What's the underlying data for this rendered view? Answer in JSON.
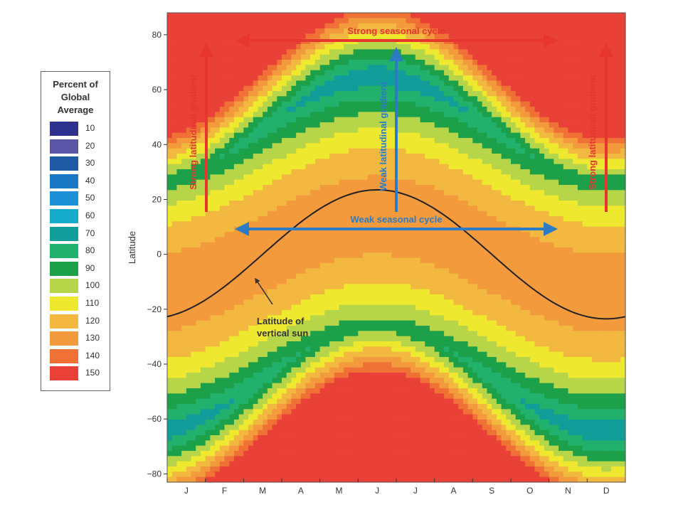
{
  "chart_data": {
    "type": "heatmap",
    "title": "",
    "xlabel": "",
    "ylabel": "Latitude",
    "x_ticks": [
      "J",
      "F",
      "M",
      "A",
      "M",
      "J",
      "J",
      "A",
      "S",
      "O",
      "N",
      "D"
    ],
    "y_ticks": [
      80,
      60,
      40,
      20,
      0,
      -20,
      -40,
      -60,
      -80
    ],
    "ylim": [
      -83,
      88
    ],
    "legend": {
      "title": "Percent of\nGlobal\nAverage",
      "placement": "left",
      "levels": [
        {
          "value": 10,
          "color": "#2f3191"
        },
        {
          "value": 20,
          "color": "#5b55a5"
        },
        {
          "value": 30,
          "color": "#1f5aa6"
        },
        {
          "value": 40,
          "color": "#1a77c3"
        },
        {
          "value": 50,
          "color": "#1c8fd6"
        },
        {
          "value": 60,
          "color": "#16abcb"
        },
        {
          "value": 70,
          "color": "#119d99"
        },
        {
          "value": 80,
          "color": "#21b16c"
        },
        {
          "value": 90,
          "color": "#1ca04a"
        },
        {
          "value": 100,
          "color": "#b7d548"
        },
        {
          "value": 110,
          "color": "#eee92f"
        },
        {
          "value": 120,
          "color": "#f2b83f"
        },
        {
          "value": 130,
          "color": "#f39a3c"
        },
        {
          "value": 140,
          "color": "#ef7135"
        },
        {
          "value": 150,
          "color": "#e94037"
        }
      ],
      "extreme_low_color": "#2d2d2d"
    },
    "annotations": [
      {
        "text": "Strong seasonal cycle",
        "color": "#e6362e"
      },
      {
        "text": "Weak seasonal cycle",
        "color": "#2b7cc4"
      },
      {
        "text": "Strong latitudinal gradient",
        "color": "#e6362e"
      },
      {
        "text": "Weak latitudinal gradient",
        "color": "#2b7cc4"
      },
      {
        "text": "Strong latitudinal gradient",
        "color": "#e6362e"
      },
      {
        "text": "Latitude of\nvertical sun",
        "color": "#333333"
      }
    ],
    "vertical_sun": {
      "amplitude": 23.5,
      "peak_month_index": 5.5
    }
  }
}
